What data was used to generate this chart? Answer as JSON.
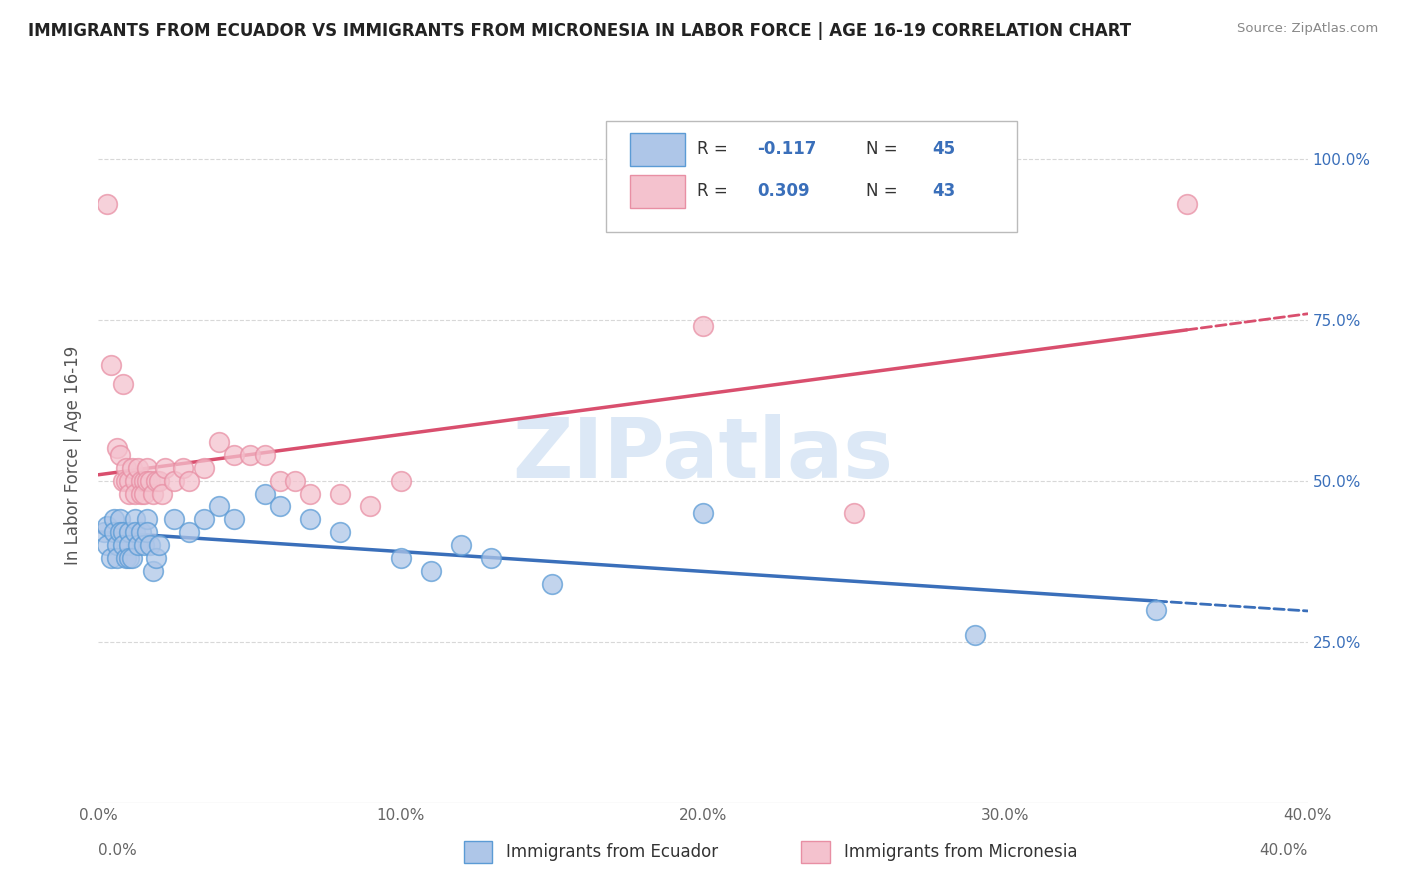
{
  "title": "IMMIGRANTS FROM ECUADOR VS IMMIGRANTS FROM MICRONESIA IN LABOR FORCE | AGE 16-19 CORRELATION CHART",
  "source": "Source: ZipAtlas.com",
  "ylabel": "In Labor Force | Age 16-19",
  "ylim": [
    0.0,
    1.08
  ],
  "xlim": [
    0.0,
    0.4
  ],
  "y_ticks": [
    0.25,
    0.5,
    0.75,
    1.0
  ],
  "y_tick_labels": [
    "25.0%",
    "50.0%",
    "75.0%",
    "100.0%"
  ],
  "x_ticks": [
    0.0,
    0.1,
    0.2,
    0.3,
    0.4
  ],
  "x_tick_labels": [
    "0.0%",
    "10.0%",
    "20.0%",
    "30.0%",
    "40.0%"
  ],
  "ecuador_color": "#aec6e8",
  "ecuador_edge_color": "#5b9bd5",
  "ecuador_line_color": "#3a6fba",
  "micronesia_color": "#f4c2ce",
  "micronesia_edge_color": "#e88fa4",
  "micronesia_line_color": "#d94f6e",
  "legend_text_color": "#3a6fba",
  "legend_R_color": "#3a6fba",
  "watermark_color": "#c5daf0",
  "watermark_text": "ZIPatlas",
  "background_color": "#ffffff",
  "grid_color": "#d8d8d8",
  "ecuador_R": -0.117,
  "ecuador_N": 45,
  "micronesia_R": 0.309,
  "micronesia_N": 43,
  "ecuador_points": [
    [
      0.002,
      0.42
    ],
    [
      0.003,
      0.43
    ],
    [
      0.003,
      0.4
    ],
    [
      0.004,
      0.38
    ],
    [
      0.005,
      0.44
    ],
    [
      0.005,
      0.42
    ],
    [
      0.006,
      0.4
    ],
    [
      0.006,
      0.38
    ],
    [
      0.007,
      0.44
    ],
    [
      0.007,
      0.42
    ],
    [
      0.008,
      0.42
    ],
    [
      0.008,
      0.4
    ],
    [
      0.009,
      0.38
    ],
    [
      0.01,
      0.42
    ],
    [
      0.01,
      0.4
    ],
    [
      0.01,
      0.38
    ],
    [
      0.011,
      0.38
    ],
    [
      0.012,
      0.44
    ],
    [
      0.012,
      0.42
    ],
    [
      0.013,
      0.4
    ],
    [
      0.014,
      0.42
    ],
    [
      0.015,
      0.4
    ],
    [
      0.016,
      0.44
    ],
    [
      0.016,
      0.42
    ],
    [
      0.017,
      0.4
    ],
    [
      0.018,
      0.36
    ],
    [
      0.019,
      0.38
    ],
    [
      0.02,
      0.4
    ],
    [
      0.025,
      0.44
    ],
    [
      0.03,
      0.42
    ],
    [
      0.035,
      0.44
    ],
    [
      0.04,
      0.46
    ],
    [
      0.045,
      0.44
    ],
    [
      0.055,
      0.48
    ],
    [
      0.06,
      0.46
    ],
    [
      0.07,
      0.44
    ],
    [
      0.08,
      0.42
    ],
    [
      0.1,
      0.38
    ],
    [
      0.11,
      0.36
    ],
    [
      0.12,
      0.4
    ],
    [
      0.13,
      0.38
    ],
    [
      0.15,
      0.34
    ],
    [
      0.2,
      0.45
    ],
    [
      0.29,
      0.26
    ],
    [
      0.35,
      0.3
    ]
  ],
  "micronesia_points": [
    [
      0.003,
      0.93
    ],
    [
      0.004,
      0.68
    ],
    [
      0.006,
      0.55
    ],
    [
      0.007,
      0.54
    ],
    [
      0.008,
      0.5
    ],
    [
      0.008,
      0.65
    ],
    [
      0.009,
      0.52
    ],
    [
      0.009,
      0.5
    ],
    [
      0.01,
      0.5
    ],
    [
      0.01,
      0.48
    ],
    [
      0.011,
      0.52
    ],
    [
      0.012,
      0.5
    ],
    [
      0.012,
      0.48
    ],
    [
      0.013,
      0.52
    ],
    [
      0.014,
      0.5
    ],
    [
      0.014,
      0.48
    ],
    [
      0.015,
      0.5
    ],
    [
      0.015,
      0.48
    ],
    [
      0.016,
      0.52
    ],
    [
      0.016,
      0.5
    ],
    [
      0.017,
      0.5
    ],
    [
      0.018,
      0.48
    ],
    [
      0.019,
      0.5
    ],
    [
      0.02,
      0.5
    ],
    [
      0.021,
      0.48
    ],
    [
      0.022,
      0.52
    ],
    [
      0.025,
      0.5
    ],
    [
      0.028,
      0.52
    ],
    [
      0.03,
      0.5
    ],
    [
      0.035,
      0.52
    ],
    [
      0.04,
      0.56
    ],
    [
      0.045,
      0.54
    ],
    [
      0.05,
      0.54
    ],
    [
      0.055,
      0.54
    ],
    [
      0.06,
      0.5
    ],
    [
      0.065,
      0.5
    ],
    [
      0.07,
      0.48
    ],
    [
      0.08,
      0.48
    ],
    [
      0.09,
      0.46
    ],
    [
      0.1,
      0.5
    ],
    [
      0.2,
      0.74
    ],
    [
      0.25,
      0.45
    ],
    [
      0.36,
      0.93
    ]
  ]
}
